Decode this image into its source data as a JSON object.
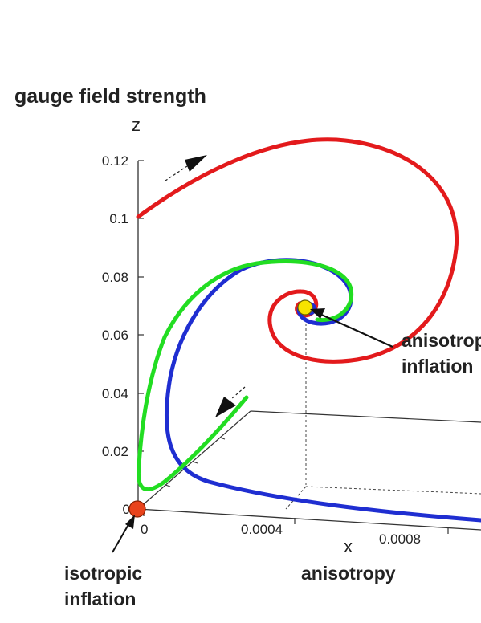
{
  "chart_data": {
    "type": "line",
    "title": "gauge field strength",
    "zlabel": "z",
    "xlabel": "x",
    "x_axis_caption": "anisotropy",
    "z_ticks": [
      "0",
      "0.02",
      "0.04",
      "0.06",
      "0.08",
      "0.1",
      "0.12"
    ],
    "x_ticks": [
      "0",
      "0.0004",
      "0.0008"
    ],
    "zlim": [
      0,
      0.12
    ],
    "annotations": {
      "isotropic": [
        "isotropic",
        "inflation"
      ],
      "anisotropic": [
        "anisotropic",
        "inflation"
      ]
    },
    "fixed_points": [
      {
        "name": "isotropic",
        "color": "#e8431c"
      },
      {
        "name": "anisotropic",
        "color": "#f7e300"
      }
    ],
    "series": [
      {
        "color": "#e31a1c"
      },
      {
        "color": "#1f2ed1"
      },
      {
        "color": "#22dd22"
      }
    ]
  }
}
